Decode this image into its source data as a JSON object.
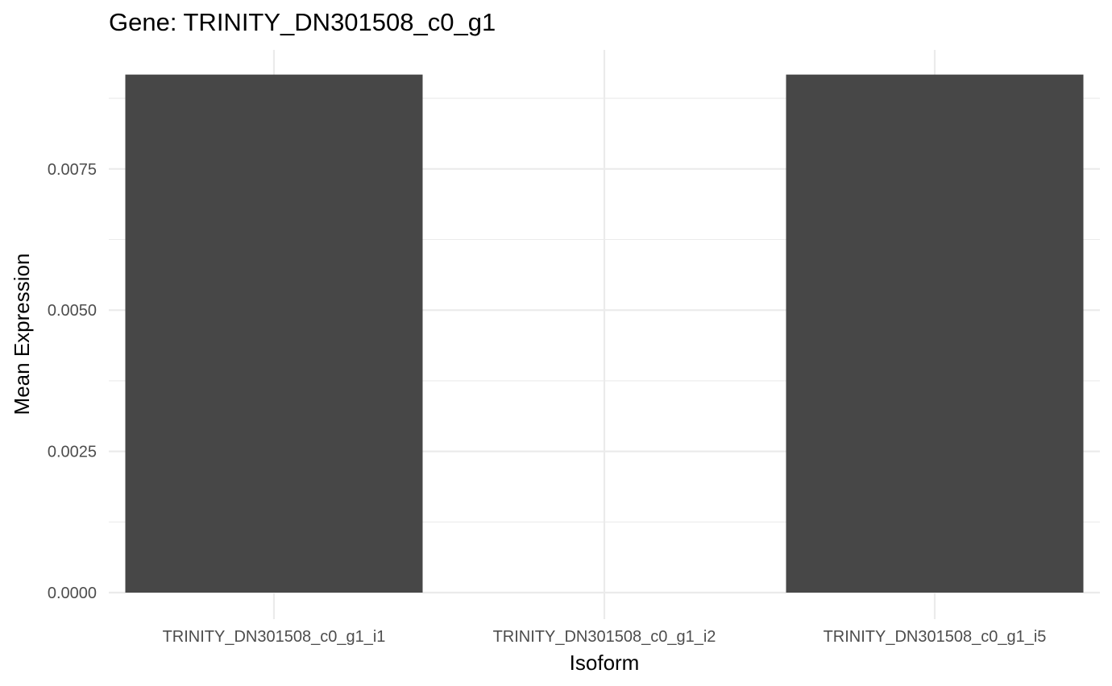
{
  "chart_data": {
    "type": "bar",
    "title": "Gene: TRINITY_DN301508_c0_g1",
    "xlabel": "Isoform",
    "ylabel": "Mean Expression",
    "categories": [
      "TRINITY_DN301508_c0_g1_i1",
      "TRINITY_DN301508_c0_g1_i2",
      "TRINITY_DN301508_c0_g1_i5"
    ],
    "values": [
      0.00917,
      0,
      0.00917
    ],
    "ylim": [
      0,
      0.0096
    ],
    "yticks": [
      0,
      0.0025,
      0.005,
      0.0075
    ],
    "ytick_labels": [
      "0.0000",
      "0.0025",
      "0.0050",
      "0.0075"
    ],
    "bar_color": "#474747",
    "grid": true,
    "legend": "none"
  }
}
